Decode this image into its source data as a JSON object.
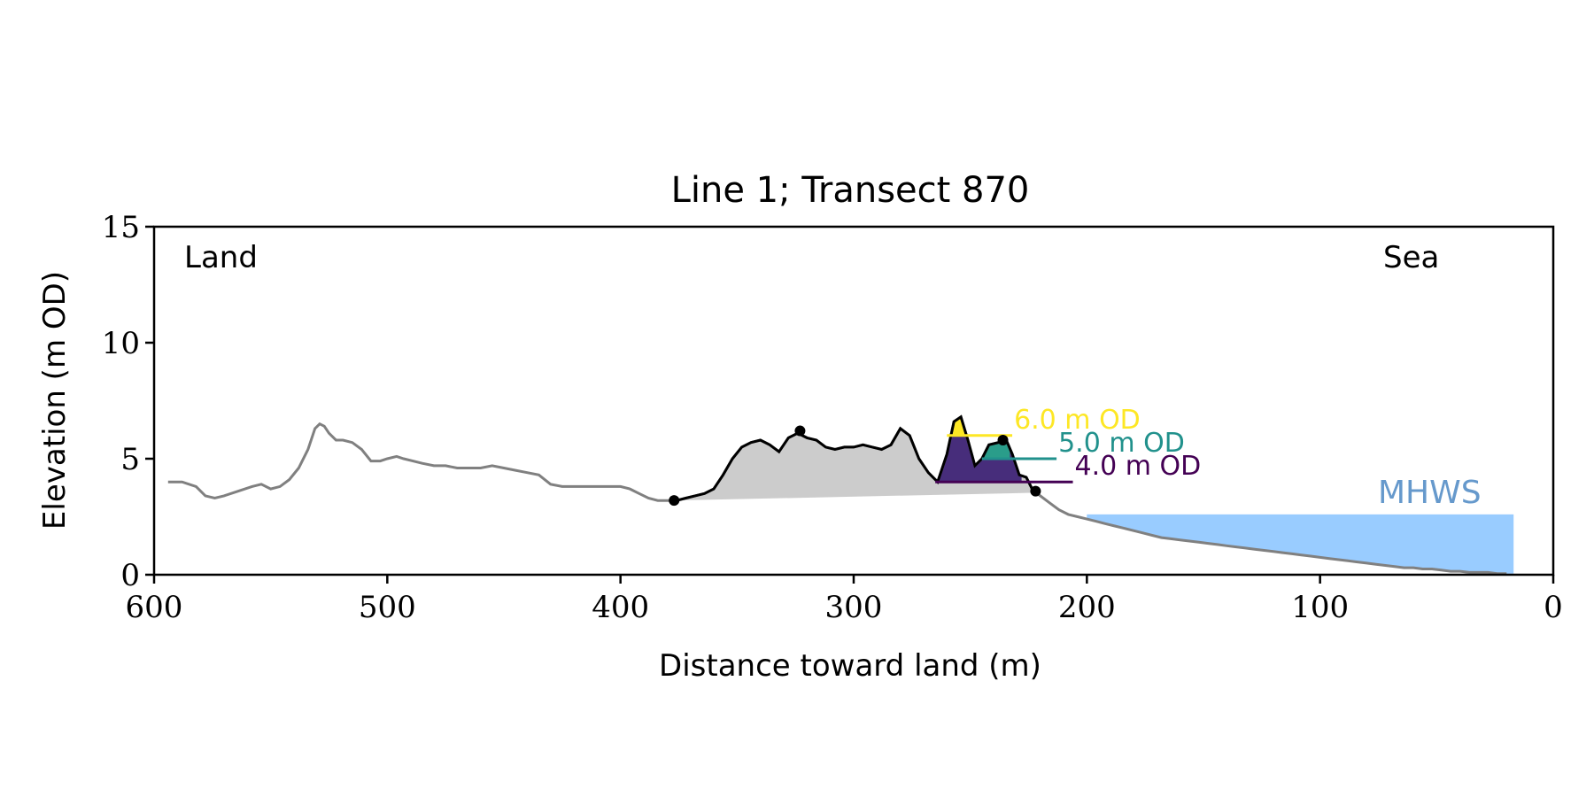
{
  "chart_data": {
    "type": "line",
    "title": "Line 1; Transect 870",
    "xlabel": "Distance toward land (m)",
    "ylabel": "Elevation (m OD)",
    "xlim": [
      600,
      0
    ],
    "ylim": [
      0,
      15
    ],
    "xticks": [
      600,
      500,
      400,
      300,
      200,
      100,
      0
    ],
    "xtick_labels": [
      "600",
      "500",
      "400",
      "300",
      "200",
      "100",
      "0"
    ],
    "yticks": [
      0,
      5,
      10,
      15
    ],
    "ytick_labels": [
      "0",
      "5",
      "10",
      "15"
    ],
    "annotations": {
      "land": "Land",
      "sea": "Sea",
      "mhws": "MHWS"
    },
    "colors": {
      "profile": "#808080",
      "dune": "#000000",
      "dune_fill": "#cccccc",
      "water": "#99ccff",
      "mhws_text": "#6699cc",
      "level_6": "#fde725",
      "level_5": "#21918c",
      "level_4": "#440154",
      "level_4_fill": "#472d7b",
      "level_5_fill": "#2a9d8a"
    },
    "mhws": {
      "elevation": 2.6,
      "x_start": 200,
      "x_end": 17
    },
    "profile": {
      "x": [
        594,
        588,
        582,
        578,
        574,
        570,
        564,
        558,
        554,
        550,
        546,
        542,
        538,
        534,
        531,
        529,
        527,
        525,
        522,
        519,
        515,
        511,
        507,
        503,
        500,
        496,
        493,
        489,
        485,
        480,
        475,
        470,
        465,
        460,
        455,
        450,
        445,
        440,
        435,
        430,
        425,
        420,
        415,
        410,
        405,
        400,
        396,
        392,
        388,
        384,
        380,
        376,
        372,
        368,
        364,
        360,
        356,
        352,
        348,
        344,
        340,
        336,
        332,
        328,
        324,
        320,
        316,
        312,
        308,
        304,
        300,
        296,
        292,
        288,
        284,
        280,
        276,
        272,
        268,
        264,
        260,
        257,
        254,
        251,
        248,
        245,
        242,
        238,
        235,
        232,
        229,
        226,
        223,
        220,
        216,
        212,
        208,
        204,
        200,
        196,
        192,
        188,
        184,
        180,
        176,
        172,
        168,
        164,
        160,
        156,
        152,
        148,
        144,
        140,
        136,
        132,
        128,
        124,
        120,
        116,
        112,
        108,
        104,
        100,
        96,
        92,
        88,
        84,
        80,
        76,
        72,
        68,
        64,
        60,
        56,
        52,
        48,
        44,
        40,
        36,
        32,
        28,
        24,
        20
      ],
      "y": [
        4.0,
        4.0,
        3.8,
        3.4,
        3.3,
        3.4,
        3.6,
        3.8,
        3.9,
        3.7,
        3.8,
        4.1,
        4.6,
        5.4,
        6.3,
        6.5,
        6.4,
        6.1,
        5.8,
        5.8,
        5.7,
        5.4,
        4.9,
        4.9,
        5.0,
        5.1,
        5.0,
        4.9,
        4.8,
        4.7,
        4.7,
        4.6,
        4.6,
        4.6,
        4.7,
        4.6,
        4.5,
        4.4,
        4.3,
        3.9,
        3.8,
        3.8,
        3.8,
        3.8,
        3.8,
        3.8,
        3.7,
        3.5,
        3.3,
        3.2,
        3.2,
        3.2,
        3.3,
        3.4,
        3.5,
        3.7,
        4.3,
        5.0,
        5.5,
        5.7,
        5.8,
        5.6,
        5.3,
        5.9,
        6.1,
        5.9,
        5.8,
        5.5,
        5.4,
        5.5,
        5.5,
        5.6,
        5.5,
        5.4,
        5.6,
        6.3,
        6.0,
        5.0,
        4.4,
        4.0,
        5.2,
        6.6,
        6.8,
        5.8,
        4.7,
        5.0,
        5.6,
        5.7,
        5.9,
        5.2,
        4.3,
        4.2,
        3.6,
        3.4,
        3.1,
        2.8,
        2.6,
        2.5,
        2.4,
        2.3,
        2.2,
        2.1,
        2.0,
        1.9,
        1.8,
        1.7,
        1.6,
        1.55,
        1.5,
        1.45,
        1.4,
        1.35,
        1.3,
        1.25,
        1.2,
        1.15,
        1.1,
        1.05,
        1.0,
        0.95,
        0.9,
        0.85,
        0.8,
        0.75,
        0.7,
        0.65,
        0.6,
        0.55,
        0.5,
        0.45,
        0.4,
        0.35,
        0.3,
        0.3,
        0.25,
        0.25,
        0.2,
        0.15,
        0.15,
        0.1,
        0.1,
        0.1,
        0.05,
        0.05
      ]
    },
    "dune": {
      "start": [
        377,
        3.2
      ],
      "end": [
        222,
        3.6
      ],
      "crests": [
        [
          323,
          6.2
        ],
        [
          236,
          5.8
        ]
      ],
      "toe_x": 265,
      "toe_y": 4.0
    },
    "levels": [
      {
        "label": "6.0 m OD",
        "elevation": 6.0,
        "x_from": 260,
        "x_to": 232,
        "color_key": "level_6"
      },
      {
        "label": "5.0 m OD",
        "elevation": 5.0,
        "x_from": 245,
        "x_to": 213,
        "color_key": "level_5"
      },
      {
        "label": "4.0 m OD",
        "elevation": 4.0,
        "x_from": 265,
        "x_to": 206,
        "color_key": "level_4"
      }
    ]
  }
}
